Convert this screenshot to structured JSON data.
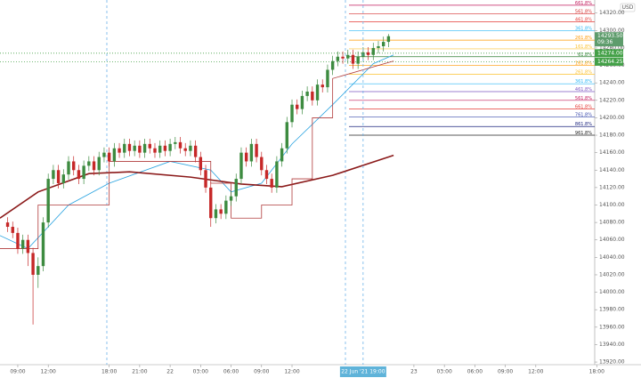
{
  "chart_data": {
    "type": "candlestick",
    "currency": "USD",
    "up_color": "#3d8b40",
    "down_color": "#c62828",
    "x": [
      8,
      8.5,
      9,
      9.5,
      10,
      10.5,
      11,
      11.5,
      12,
      12.5,
      13,
      13.5,
      14,
      14.5,
      15,
      15.5,
      16,
      16.5,
      17,
      17.5,
      18,
      18.5,
      19,
      19.5,
      20,
      20.5,
      21,
      21.5,
      22,
      22.5,
      23,
      23.5,
      24,
      24.5,
      25,
      25.5,
      26,
      26.5,
      27,
      27.5,
      28,
      28.5,
      29,
      29.5,
      30,
      30.5,
      31,
      31.5,
      32,
      32.5,
      33,
      33.5,
      34,
      34.5,
      35,
      35.5,
      36,
      36.5,
      37,
      37.5,
      38,
      38.5,
      39,
      39.5,
      40,
      40.5,
      41,
      41.5,
      42,
      42.5,
      43,
      43.5,
      44,
      44.5,
      45,
      45.5
    ],
    "open": [
      14080,
      14075,
      14068,
      14050,
      14060,
      14045,
      14020,
      14030,
      14080,
      14130,
      14140,
      14125,
      14135,
      14150,
      14140,
      14130,
      14145,
      14150,
      14140,
      14155,
      14160,
      14150,
      14165,
      14160,
      14170,
      14162,
      14168,
      14160,
      14170,
      14165,
      14160,
      14168,
      14162,
      14170,
      14172,
      14165,
      14162,
      14168,
      14155,
      14140,
      14120,
      14085,
      14095,
      14090,
      14105,
      14110,
      14130,
      14160,
      14150,
      14170,
      14155,
      14140,
      14130,
      14120,
      14150,
      14165,
      14195,
      14215,
      14210,
      14225,
      14230,
      14220,
      14238,
      14235,
      14255,
      14265,
      14270,
      14268,
      14272,
      14262,
      14270,
      14275,
      14272,
      14280,
      14282,
      14287
    ],
    "high": [
      14086,
      14081,
      14074,
      14066,
      14066,
      14051,
      14040,
      14086,
      14136,
      14146,
      14146,
      14141,
      14156,
      14156,
      14146,
      14151,
      14156,
      14156,
      14161,
      14166,
      14166,
      14171,
      14171,
      14176,
      14176,
      14174,
      14174,
      14176,
      14176,
      14171,
      14174,
      14174,
      14176,
      14178,
      14178,
      14171,
      14174,
      14174,
      14161,
      14146,
      14126,
      14101,
      14101,
      14111,
      14116,
      14136,
      14166,
      14166,
      14176,
      14176,
      14161,
      14146,
      14136,
      14156,
      14171,
      14201,
      14221,
      14221,
      14231,
      14236,
      14236,
      14244,
      14244,
      14261,
      14271,
      14276,
      14276,
      14278,
      14278,
      14276,
      14281,
      14281,
      14286,
      14288,
      14293,
      14296
    ],
    "low": [
      14069,
      14062,
      14044,
      14044,
      14030,
      13963,
      14005,
      14024,
      14074,
      14124,
      14119,
      14119,
      14129,
      14134,
      14124,
      14124,
      14139,
      14134,
      14134,
      14149,
      14144,
      14144,
      14154,
      14154,
      14156,
      14156,
      14154,
      14154,
      14159,
      14154,
      14154,
      14156,
      14156,
      14164,
      14159,
      14156,
      14156,
      14149,
      14134,
      14114,
      14075,
      14079,
      14084,
      14084,
      14099,
      14104,
      14124,
      14144,
      14144,
      14149,
      14134,
      14124,
      14114,
      14114,
      14144,
      14159,
      14189,
      14204,
      14204,
      14219,
      14214,
      14214,
      14229,
      14229,
      14249,
      14259,
      14262,
      14262,
      14256,
      14256,
      14264,
      14266,
      14266,
      14274,
      14276,
      14281
    ],
    "close": [
      14075,
      14068,
      14050,
      14060,
      14045,
      14020,
      14030,
      14080,
      14130,
      14140,
      14125,
      14135,
      14150,
      14140,
      14130,
      14145,
      14150,
      14140,
      14155,
      14160,
      14150,
      14165,
      14160,
      14170,
      14162,
      14168,
      14160,
      14170,
      14165,
      14160,
      14168,
      14162,
      14170,
      14172,
      14165,
      14162,
      14168,
      14155,
      14140,
      14120,
      14085,
      14095,
      14090,
      14105,
      14110,
      14130,
      14160,
      14150,
      14170,
      14155,
      14140,
      14130,
      14120,
      14150,
      14165,
      14195,
      14215,
      14210,
      14225,
      14230,
      14220,
      14238,
      14235,
      14255,
      14265,
      14270,
      14268,
      14272,
      14262,
      14270,
      14275,
      14272,
      14280,
      14282,
      14287,
      14293.5
    ],
    "overlays": [
      {
        "color": "#29a3e0",
        "x": [
          7.25,
          10,
          14,
          18,
          24,
          28,
          30,
          33,
          36,
          40,
          44,
          46
        ],
        "values": [
          14065,
          14050,
          14100,
          14125,
          14150,
          14140,
          14115,
          14125,
          14170,
          14215,
          14262,
          14272
        ]
      },
      {
        "color": "#8b1a1a",
        "x": [
          7.25,
          11,
          16,
          20,
          26,
          31,
          35,
          40,
          46
        ],
        "values": [
          14085,
          14115,
          14136,
          14138,
          14132,
          14124,
          14121,
          14134,
          14157
        ]
      },
      {
        "color": "#b03a3a",
        "x": [
          7.25,
          11,
          11,
          18,
          18,
          28,
          28,
          30,
          30,
          33,
          33,
          36,
          36,
          38,
          38,
          40,
          40,
          46
        ],
        "values": [
          14050,
          14050,
          14100,
          14100,
          14150,
          14150,
          14125,
          14125,
          14085,
          14085,
          14100,
          14100,
          14130,
          14130,
          14200,
          14200,
          14245,
          14265
        ]
      }
    ],
    "fib_levels": [
      {
        "label": "661.8%",
        "value": 14329,
        "color": "#c2185b"
      },
      {
        "label": "561.8%",
        "value": 14319,
        "color": "#d32f2f"
      },
      {
        "label": "461.8%",
        "value": 14310,
        "color": "#e53935"
      },
      {
        "label": "361.8%",
        "value": 14300,
        "color": "#29b6f6"
      },
      {
        "label": "261.8%",
        "value": 14289,
        "color": "#ff9800"
      },
      {
        "label": "161.8%",
        "value": 14279,
        "color": "#fbc02d"
      },
      {
        "label": "61.8%",
        "value": 14270,
        "color": "#2e7d32"
      },
      {
        "label": "161.8%",
        "value": 14260,
        "color": "#ff9800"
      },
      {
        "label": "261.8%",
        "value": 14250,
        "color": "#fbc02d"
      },
      {
        "label": "361.8%",
        "value": 14239,
        "color": "#29b6f6"
      },
      {
        "label": "461.8%",
        "value": 14230,
        "color": "#7e57c2"
      },
      {
        "label": "561.8%",
        "value": 14220,
        "color": "#c2185b"
      },
      {
        "label": "661.8%",
        "value": 14210,
        "color": "#e53935"
      },
      {
        "label": "761.8%",
        "value": 14201,
        "color": "#3949ab"
      },
      {
        "label": "861.8%",
        "value": 14190,
        "color": "#1a237e"
      },
      {
        "label": "961.8%",
        "value": 14180,
        "color": "#222222"
      }
    ],
    "price_tags": [
      {
        "value": 14293.5,
        "label": "14293.50",
        "countdown": "09:36",
        "color": "#5e9c6c"
      },
      {
        "value": 14274,
        "label": "14274.00",
        "color": "#43a047"
      },
      {
        "value": 14264.25,
        "label": "14264.25",
        "color": "#43a047"
      }
    ],
    "crosshair": {
      "x": 43,
      "label": "22 Jun '21  19:00"
    },
    "xlim": [
      7.25,
      65.8
    ],
    "ylim": [
      13917,
      14335
    ],
    "xticks": [
      {
        "value": 9,
        "label": "09:00"
      },
      {
        "value": 12,
        "label": "12:00"
      },
      {
        "value": 18,
        "label": "18:00"
      },
      {
        "value": 21,
        "label": "21:00"
      },
      {
        "value": 24,
        "label": "22"
      },
      {
        "value": 27,
        "label": "03:00"
      },
      {
        "value": 30,
        "label": "06:00"
      },
      {
        "value": 33,
        "label": "09:00"
      },
      {
        "value": 36,
        "label": "12:00"
      },
      {
        "value": 48,
        "label": "23"
      },
      {
        "value": 51,
        "label": "03:00"
      },
      {
        "value": 54,
        "label": "06:00"
      },
      {
        "value": 57,
        "label": "09:00"
      },
      {
        "value": 60,
        "label": "12:00"
      },
      {
        "value": 66,
        "label": "18:00"
      }
    ],
    "yticks": [
      {
        "value": 14320,
        "label": "14320.00"
      },
      {
        "value": 14300,
        "label": "14300.00"
      },
      {
        "value": 14280,
        "label": "14280.00"
      },
      {
        "value": 14260,
        "label": "14260.00"
      },
      {
        "value": 14240,
        "label": "14240.00"
      },
      {
        "value": 14220,
        "label": "14220.00"
      },
      {
        "value": 14200,
        "label": "14200.00"
      },
      {
        "value": 14180,
        "label": "14180.00"
      },
      {
        "value": 14160,
        "label": "14160.00"
      },
      {
        "value": 14140,
        "label": "14140.00"
      },
      {
        "value": 14120,
        "label": "14120.00"
      },
      {
        "value": 14100,
        "label": "14100.00"
      },
      {
        "value": 14080,
        "label": "14080.00"
      },
      {
        "value": 14060,
        "label": "14060.00"
      },
      {
        "value": 14040,
        "label": "14040.00"
      },
      {
        "value": 14020,
        "label": "14020.00"
      },
      {
        "value": 14000,
        "label": "14000.00"
      },
      {
        "value": 13980,
        "label": "13980.00"
      },
      {
        "value": 13960,
        "label": "13960.00"
      },
      {
        "value": 13940,
        "label": "13940.00"
      },
      {
        "value": 13920,
        "label": "13920.00"
      }
    ]
  }
}
